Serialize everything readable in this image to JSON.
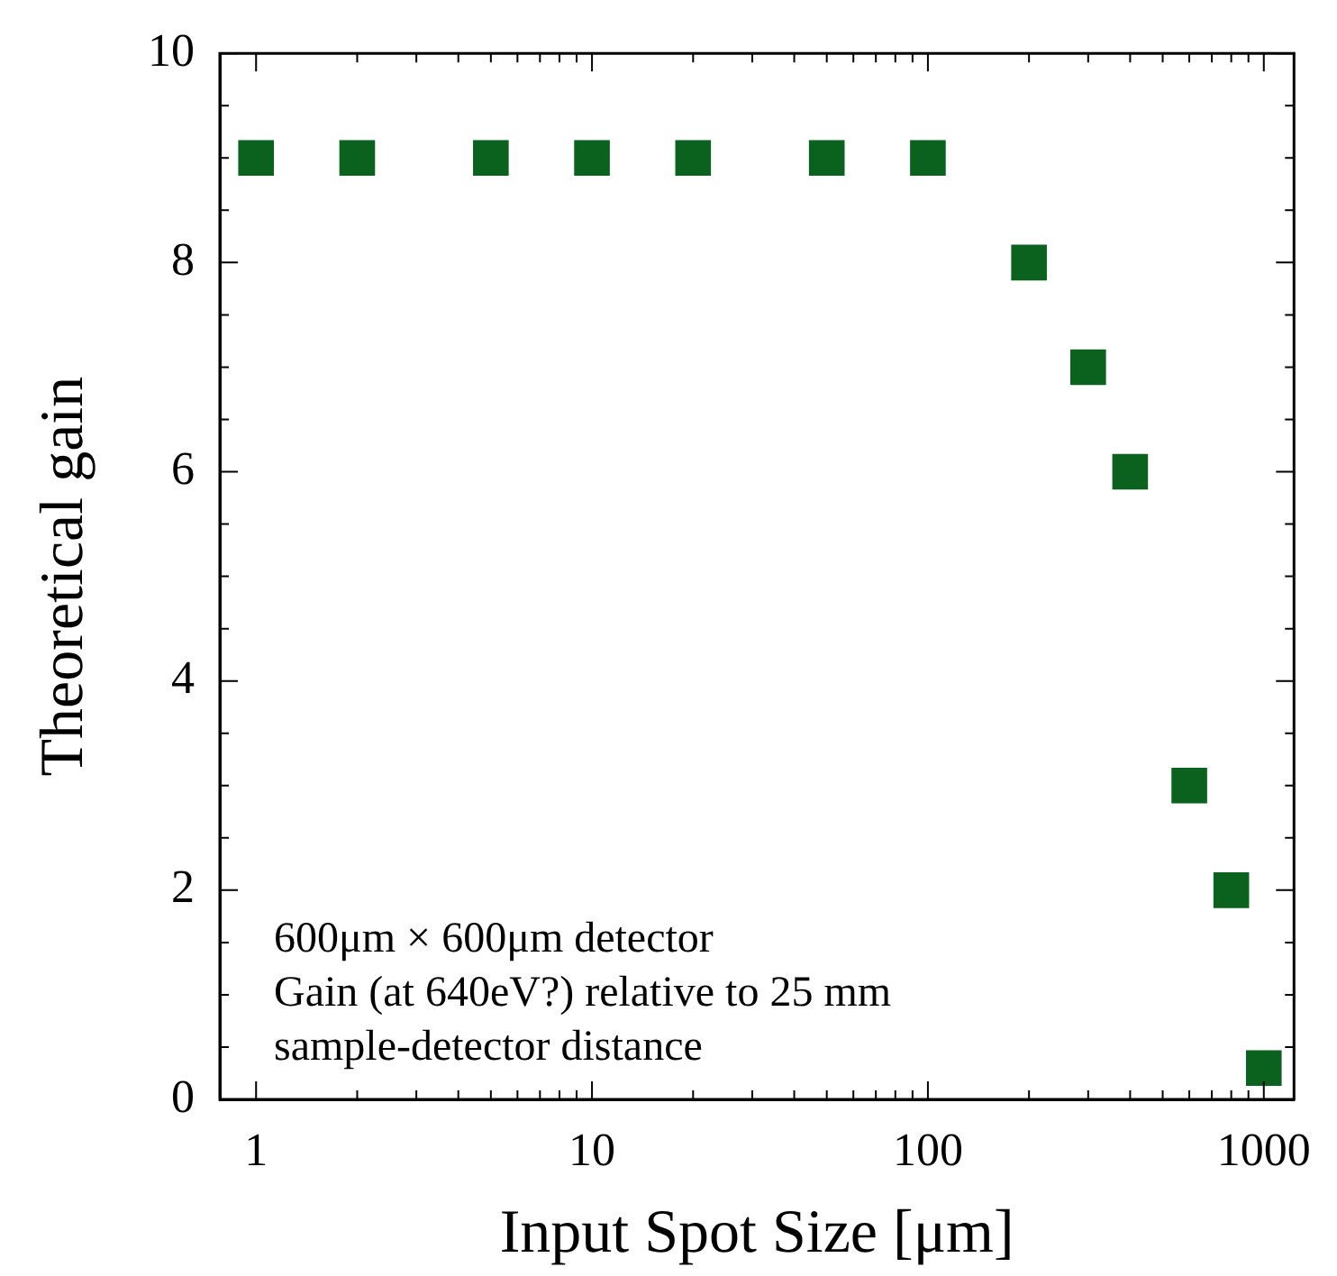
{
  "chart_data": {
    "type": "scatter",
    "xlabel": "Input Spot Size [μm]",
    "ylabel": "Theoretical gain",
    "annotations": [
      "600μm × 600μm detector",
      "Gain (at 640eV?) relative to 25 mm",
      "sample-detector distance"
    ],
    "log": "x",
    "xlim": [
      0.78,
      1230
    ],
    "ylim": [
      0,
      10
    ],
    "xticks": [
      1,
      {
        "value": 2,
        "label": null
      },
      {
        "value": 3,
        "label": null
      },
      {
        "value": 4,
        "label": null
      },
      {
        "value": 5,
        "label": null
      },
      {
        "value": 6,
        "label": null
      },
      {
        "value": 7,
        "label": null
      },
      {
        "value": 8,
        "label": null
      },
      {
        "value": 9,
        "label": null
      },
      10,
      {
        "value": 20,
        "label": null
      },
      {
        "value": 30,
        "label": null
      },
      {
        "value": 40,
        "label": null
      },
      {
        "value": 50,
        "label": null
      },
      {
        "value": 60,
        "label": null
      },
      {
        "value": 70,
        "label": null
      },
      {
        "value": 80,
        "label": null
      },
      {
        "value": 90,
        "label": null
      },
      100,
      {
        "value": 200,
        "label": null
      },
      {
        "value": 300,
        "label": null
      },
      {
        "value": 400,
        "label": null
      },
      {
        "value": 500,
        "label": null
      },
      {
        "value": 600,
        "label": null
      },
      {
        "value": 700,
        "label": null
      },
      {
        "value": 800,
        "label": null
      },
      {
        "value": 900,
        "label": null
      },
      1000
    ],
    "yticks": [
      0,
      {
        "value": 0.5,
        "label": null
      },
      {
        "value": 1,
        "label": null
      },
      {
        "value": 1.5,
        "label": null
      },
      2,
      {
        "value": 2.5,
        "label": null
      },
      {
        "value": 3,
        "label": null
      },
      {
        "value": 3.5,
        "label": null
      },
      4,
      {
        "value": 4.5,
        "label": null
      },
      {
        "value": 5,
        "label": null
      },
      {
        "value": 5.5,
        "label": null
      },
      6,
      {
        "value": 6.5,
        "label": null
      },
      {
        "value": 7,
        "label": null
      },
      {
        "value": 7.5,
        "label": null
      },
      8,
      {
        "value": 8.5,
        "label": null
      },
      {
        "value": 9,
        "label": null
      },
      {
        "value": 9.5,
        "label": null
      },
      10
    ],
    "grid": false,
    "legend": false,
    "marker": "square",
    "series": [
      {
        "color": "#0b611e",
        "x": [
          1,
          2,
          5,
          10,
          20,
          50,
          100,
          200,
          300,
          400,
          600,
          800,
          1000
        ],
        "values": [
          9,
          9,
          9,
          9,
          9,
          9,
          9,
          8,
          7,
          6,
          3,
          2,
          0.3
        ]
      }
    ]
  }
}
